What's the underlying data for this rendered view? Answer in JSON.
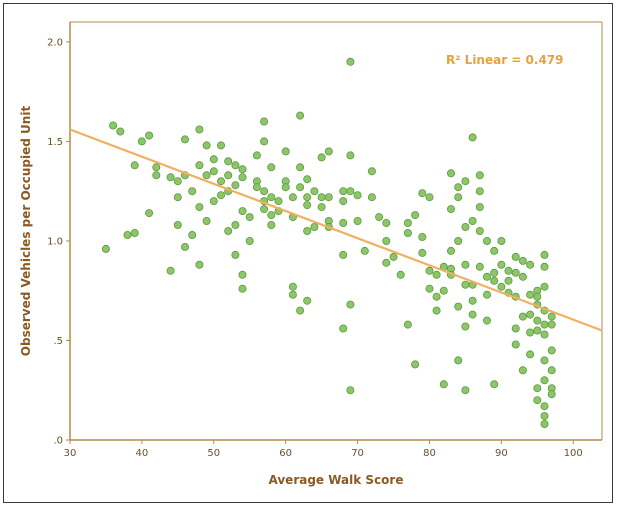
{
  "chart_data": {
    "type": "scatter",
    "title": "",
    "xlabel": "Average Walk Score",
    "ylabel": "Observed Vehicles per Occupied Unit",
    "xlim": [
      30,
      104
    ],
    "ylim": [
      0,
      2.1
    ],
    "x_ticks": [
      30,
      40,
      50,
      60,
      70,
      80,
      90,
      100
    ],
    "x_tick_labels": [
      "30",
      "40",
      "50",
      "60",
      "70",
      "80",
      "90",
      "100"
    ],
    "y_ticks": [
      0,
      0.5,
      1.0,
      1.5,
      2.0
    ],
    "y_tick_labels": [
      ".0",
      ".5",
      "1.0",
      "1.5",
      "2.0"
    ],
    "grid": false,
    "annotation": "R² Linear = 0.479",
    "colors": {
      "point_fill": "#8cc56a",
      "point_stroke": "#5d9a3c",
      "fit_line": "#f0b060",
      "axis": "#b48a4a"
    },
    "fit_line": {
      "x": [
        30,
        104
      ],
      "y": [
        1.56,
        0.55
      ]
    },
    "points": [
      [
        35,
        0.96
      ],
      [
        36,
        1.58
      ],
      [
        37,
        1.55
      ],
      [
        38,
        1.03
      ],
      [
        39,
        1.38
      ],
      [
        39,
        1.04
      ],
      [
        40,
        1.5
      ],
      [
        41,
        1.53
      ],
      [
        41,
        1.14
      ],
      [
        42,
        1.37
      ],
      [
        42,
        1.33
      ],
      [
        44,
        1.32
      ],
      [
        44,
        0.85
      ],
      [
        45,
        1.22
      ],
      [
        45,
        1.08
      ],
      [
        45,
        1.3
      ],
      [
        46,
        1.51
      ],
      [
        46,
        0.97
      ],
      [
        46,
        1.33
      ],
      [
        47,
        1.03
      ],
      [
        47,
        1.25
      ],
      [
        48,
        1.56
      ],
      [
        48,
        1.38
      ],
      [
        48,
        1.17
      ],
      [
        48,
        0.88
      ],
      [
        49,
        1.33
      ],
      [
        49,
        1.48
      ],
      [
        49,
        1.1
      ],
      [
        50,
        1.2
      ],
      [
        50,
        1.35
      ],
      [
        50,
        1.41
      ],
      [
        51,
        1.3
      ],
      [
        51,
        1.23
      ],
      [
        51,
        1.48
      ],
      [
        52,
        1.25
      ],
      [
        52,
        1.4
      ],
      [
        52,
        1.05
      ],
      [
        52,
        1.33
      ],
      [
        53,
        1.38
      ],
      [
        53,
        1.28
      ],
      [
        53,
        0.93
      ],
      [
        53,
        1.08
      ],
      [
        54,
        1.36
      ],
      [
        54,
        1.32
      ],
      [
        54,
        1.15
      ],
      [
        54,
        0.83
      ],
      [
        54,
        0.76
      ],
      [
        55,
        1.12
      ],
      [
        55,
        1.0
      ],
      [
        56,
        1.3
      ],
      [
        56,
        1.43
      ],
      [
        56,
        1.27
      ],
      [
        57,
        1.6
      ],
      [
        57,
        1.5
      ],
      [
        57,
        1.25
      ],
      [
        57,
        1.2
      ],
      [
        57,
        1.16
      ],
      [
        58,
        1.13
      ],
      [
        58,
        1.37
      ],
      [
        58,
        1.22
      ],
      [
        58,
        1.08
      ],
      [
        59,
        1.2
      ],
      [
        59,
        1.15
      ],
      [
        60,
        1.3
      ],
      [
        60,
        1.45
      ],
      [
        60,
        1.27
      ],
      [
        61,
        1.22
      ],
      [
        61,
        1.12
      ],
      [
        61,
        0.77
      ],
      [
        61,
        0.73
      ],
      [
        62,
        1.63
      ],
      [
        62,
        1.37
      ],
      [
        62,
        1.27
      ],
      [
        62,
        0.65
      ],
      [
        63,
        1.31
      ],
      [
        63,
        1.22
      ],
      [
        63,
        1.18
      ],
      [
        63,
        1.05
      ],
      [
        63,
        0.7
      ],
      [
        64,
        1.25
      ],
      [
        64,
        1.07
      ],
      [
        65,
        1.42
      ],
      [
        65,
        1.22
      ],
      [
        65,
        1.17
      ],
      [
        66,
        1.45
      ],
      [
        66,
        1.22
      ],
      [
        66,
        1.1
      ],
      [
        66,
        1.07
      ],
      [
        68,
        1.25
      ],
      [
        68,
        1.2
      ],
      [
        68,
        1.09
      ],
      [
        68,
        0.93
      ],
      [
        68,
        0.56
      ],
      [
        69,
        1.9
      ],
      [
        69,
        1.43
      ],
      [
        69,
        1.25
      ],
      [
        69,
        0.68
      ],
      [
        69,
        0.25
      ],
      [
        70,
        1.23
      ],
      [
        70,
        1.1
      ],
      [
        71,
        0.95
      ],
      [
        72,
        1.35
      ],
      [
        72,
        1.22
      ],
      [
        73,
        1.12
      ],
      [
        74,
        1.09
      ],
      [
        74,
        1.0
      ],
      [
        74,
        0.89
      ],
      [
        75,
        0.92
      ],
      [
        76,
        0.83
      ],
      [
        77,
        1.09
      ],
      [
        77,
        1.04
      ],
      [
        77,
        0.58
      ],
      [
        78,
        1.13
      ],
      [
        78,
        0.38
      ],
      [
        79,
        1.24
      ],
      [
        79,
        1.02
      ],
      [
        79,
        0.94
      ],
      [
        80,
        1.22
      ],
      [
        80,
        0.85
      ],
      [
        80,
        0.76
      ],
      [
        81,
        0.83
      ],
      [
        81,
        0.72
      ],
      [
        81,
        0.65
      ],
      [
        82,
        0.87
      ],
      [
        82,
        0.75
      ],
      [
        82,
        0.28
      ],
      [
        83,
        1.34
      ],
      [
        83,
        1.16
      ],
      [
        83,
        0.95
      ],
      [
        83,
        0.86
      ],
      [
        83,
        0.83
      ],
      [
        84,
        1.27
      ],
      [
        84,
        1.22
      ],
      [
        84,
        1.0
      ],
      [
        84,
        0.67
      ],
      [
        84,
        0.4
      ],
      [
        85,
        1.3
      ],
      [
        85,
        1.07
      ],
      [
        85,
        0.88
      ],
      [
        85,
        0.78
      ],
      [
        85,
        0.57
      ],
      [
        85,
        0.25
      ],
      [
        86,
        1.52
      ],
      [
        86,
        1.1
      ],
      [
        86,
        0.78
      ],
      [
        86,
        0.7
      ],
      [
        86,
        0.63
      ],
      [
        87,
        1.33
      ],
      [
        87,
        1.25
      ],
      [
        87,
        1.17
      ],
      [
        87,
        1.05
      ],
      [
        87,
        0.87
      ],
      [
        88,
        1.0
      ],
      [
        88,
        0.82
      ],
      [
        88,
        0.73
      ],
      [
        88,
        0.6
      ],
      [
        89,
        0.95
      ],
      [
        89,
        0.84
      ],
      [
        89,
        0.8
      ],
      [
        89,
        0.28
      ],
      [
        90,
        1.0
      ],
      [
        90,
        0.88
      ],
      [
        90,
        0.77
      ],
      [
        91,
        0.85
      ],
      [
        91,
        0.8
      ],
      [
        91,
        0.74
      ],
      [
        92,
        0.92
      ],
      [
        92,
        0.84
      ],
      [
        92,
        0.72
      ],
      [
        92,
        0.56
      ],
      [
        92,
        0.48
      ],
      [
        93,
        0.9
      ],
      [
        93,
        0.82
      ],
      [
        93,
        0.62
      ],
      [
        93,
        0.35
      ],
      [
        94,
        0.88
      ],
      [
        94,
        0.73
      ],
      [
        94,
        0.63
      ],
      [
        94,
        0.54
      ],
      [
        94,
        0.43
      ],
      [
        95,
        0.75
      ],
      [
        95,
        0.72
      ],
      [
        95,
        0.68
      ],
      [
        95,
        0.6
      ],
      [
        95,
        0.55
      ],
      [
        95,
        0.26
      ],
      [
        95,
        0.2
      ],
      [
        96,
        0.93
      ],
      [
        96,
        0.87
      ],
      [
        96,
        0.77
      ],
      [
        96,
        0.65
      ],
      [
        96,
        0.58
      ],
      [
        96,
        0.53
      ],
      [
        96,
        0.4
      ],
      [
        96,
        0.3
      ],
      [
        96,
        0.17
      ],
      [
        96,
        0.12
      ],
      [
        96,
        0.08
      ],
      [
        97,
        0.62
      ],
      [
        97,
        0.58
      ],
      [
        97,
        0.45
      ],
      [
        97,
        0.35
      ],
      [
        97,
        0.26
      ],
      [
        97,
        0.23
      ]
    ]
  }
}
